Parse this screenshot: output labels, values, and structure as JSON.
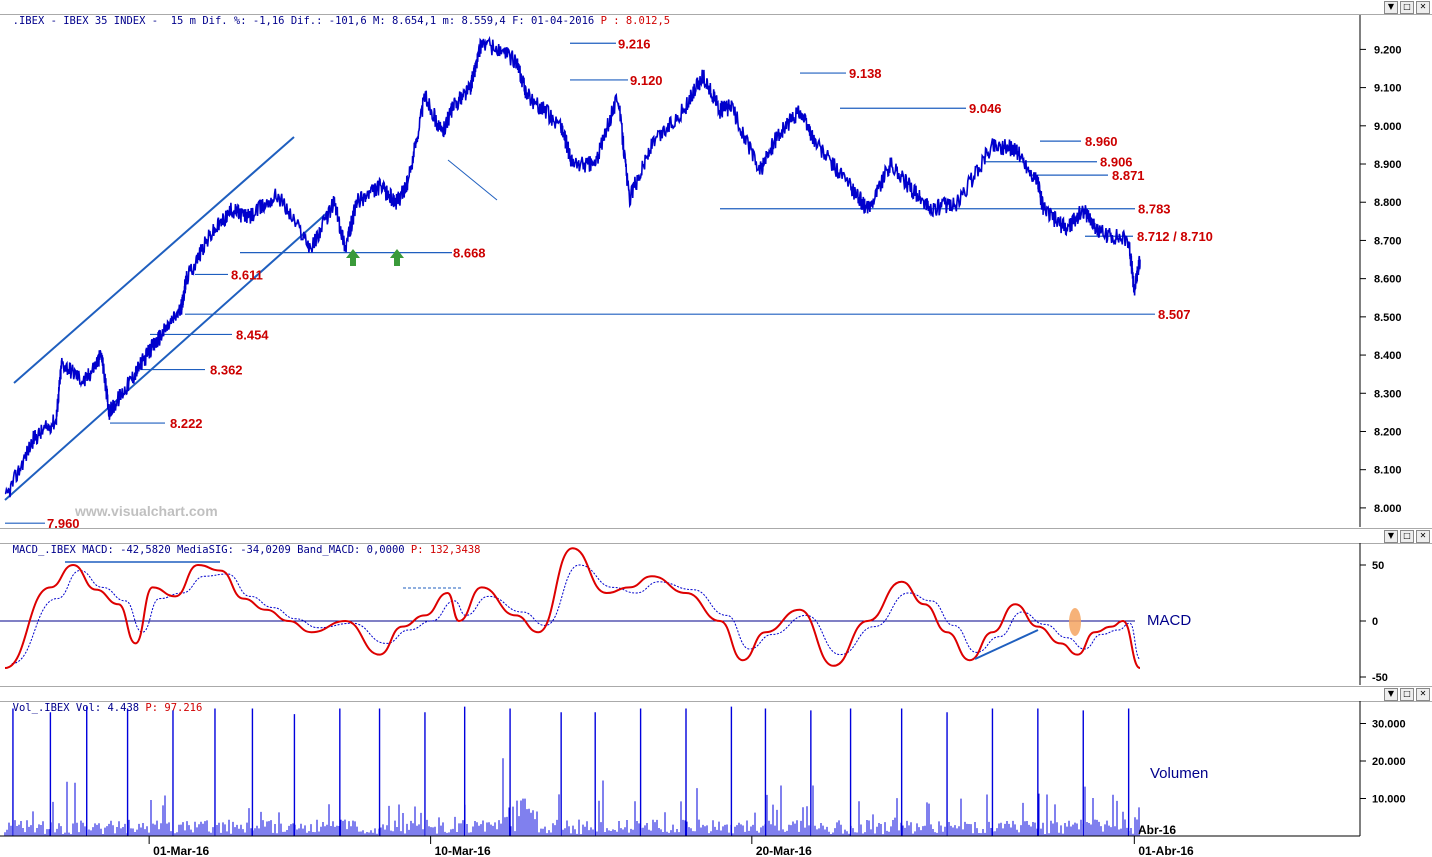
{
  "price_panel": {
    "header": {
      "symbol": ".IBEX - IBEX 35 INDEX -",
      "stats": "  15 m Dif. %: -1,16 Dif.: -101,6 M: 8.654,1 m: 8.559,4 F: 01-04-2016 ",
      "close_label": "P : 8.012,5"
    },
    "watermark": "www.visualchart.com"
  },
  "macd_panel": {
    "header": {
      "stats": "MACD_.IBEX MACD: -42,5820 MediaSIG: -34,0209 Band_MACD: 0,0000 ",
      "p_label": "P: 132,3438"
    },
    "label": "MACD"
  },
  "volume_panel": {
    "header": {
      "stats": "Vol_.IBEX Vol: 4.438 ",
      "p_label": "P: 97.216"
    },
    "label": "Volumen"
  },
  "window_buttons": [
    "▼",
    "□",
    "✕"
  ],
  "colors": {
    "price": "#0000cc",
    "level_line": "#1f5fbf",
    "level_text": "#cc0000",
    "macd": "#dd0000",
    "signal": "#0000cc",
    "volume": "#0000dd",
    "arrow": "#3a9a3a",
    "highlight": "#f4a460"
  },
  "chart_data": [
    {
      "type": "line",
      "title": "IBEX 35 INDEX 15 m",
      "x_ticks": [
        "01-Mar-16",
        "10-Mar-16",
        "20-Mar-16",
        "01-Abr-16"
      ],
      "x_tick_fracs": [
        0.127,
        0.375,
        0.658,
        0.995
      ],
      "ylim": [
        7.95,
        9.29
      ],
      "y_ticks": [
        "8.000",
        "8.100",
        "8.200",
        "8.300",
        "8.400",
        "8.500",
        "8.600",
        "8.700",
        "8.800",
        "8.900",
        "9.000",
        "9.100",
        "9.200"
      ],
      "y_tick_values": [
        8.0,
        8.1,
        8.2,
        8.3,
        8.4,
        8.5,
        8.6,
        8.7,
        8.8,
        8.9,
        9.0,
        9.1,
        9.2
      ],
      "series": [
        {
          "x": [
            0.0,
            0.025,
            0.045,
            0.05,
            0.07,
            0.085,
            0.092,
            0.11,
            0.125,
            0.137,
            0.155,
            0.16,
            0.18,
            0.2,
            0.215,
            0.24,
            0.27,
            0.29,
            0.3,
            0.31,
            0.33,
            0.345,
            0.355,
            0.37,
            0.385,
            0.395,
            0.41,
            0.42,
            0.45,
            0.46,
            0.49,
            0.5,
            0.52,
            0.54,
            0.55,
            0.57,
            0.6,
            0.615,
            0.63,
            0.64,
            0.665,
            0.68,
            0.7,
            0.715,
            0.745,
            0.76,
            0.78,
            0.8,
            0.815,
            0.84,
            0.87,
            0.89,
            0.91,
            0.915,
            0.935,
            0.95,
            0.965,
            0.99,
            0.995,
            1.0
          ],
          "values": [
            8.02,
            8.18,
            8.23,
            8.38,
            8.33,
            8.4,
            8.25,
            8.33,
            8.4,
            8.45,
            8.52,
            8.6,
            8.71,
            8.78,
            8.76,
            8.82,
            8.68,
            8.8,
            8.68,
            8.8,
            8.84,
            8.8,
            8.85,
            9.08,
            8.98,
            9.05,
            9.1,
            9.22,
            9.17,
            9.08,
            9.0,
            8.9,
            8.9,
            9.08,
            8.81,
            8.95,
            9.05,
            9.13,
            9.04,
            9.05,
            8.88,
            8.97,
            9.04,
            8.95,
            8.84,
            8.78,
            8.9,
            8.83,
            8.78,
            8.8,
            8.95,
            8.94,
            8.85,
            8.78,
            8.73,
            8.78,
            8.72,
            8.7,
            8.57,
            8.65
          ]
        }
      ],
      "levels": [
        {
          "label": "7.960",
          "value": 7.96
        },
        {
          "label": "8.222",
          "value": 8.222
        },
        {
          "label": "8.362",
          "value": 8.362
        },
        {
          "label": "8.454",
          "value": 8.454
        },
        {
          "label": "8.611",
          "value": 8.611
        },
        {
          "label": "8.668",
          "value": 8.668
        },
        {
          "label": "8.507",
          "value": 8.507
        },
        {
          "label": "9.216",
          "value": 9.216
        },
        {
          "label": "9.120",
          "value": 9.12
        },
        {
          "label": "9.138",
          "value": 9.138
        },
        {
          "label": "9.046",
          "value": 9.046
        },
        {
          "label": "8.960",
          "value": 8.96
        },
        {
          "label": "8.906",
          "value": 8.906
        },
        {
          "label": "8.871",
          "value": 8.871
        },
        {
          "label": "8.783",
          "value": 8.783
        },
        {
          "label": "8.712 / 8.710",
          "value": 8.711
        }
      ]
    },
    {
      "type": "line",
      "title": "MACD",
      "ylim": [
        -55,
        70
      ],
      "y_ticks": [
        "50",
        "0",
        "-50"
      ],
      "y_tick_values": [
        50,
        0,
        -50
      ],
      "x": [
        0.0,
        0.04,
        0.06,
        0.08,
        0.1,
        0.115,
        0.13,
        0.15,
        0.17,
        0.19,
        0.21,
        0.23,
        0.25,
        0.27,
        0.3,
        0.33,
        0.35,
        0.37,
        0.39,
        0.4,
        0.42,
        0.45,
        0.47,
        0.5,
        0.53,
        0.55,
        0.57,
        0.6,
        0.63,
        0.65,
        0.67,
        0.7,
        0.73,
        0.76,
        0.79,
        0.81,
        0.83,
        0.85,
        0.87,
        0.89,
        0.91,
        0.93,
        0.945,
        0.96,
        0.975,
        0.985,
        1.0
      ],
      "series": [
        {
          "values": [
            -42,
            30,
            50,
            28,
            15,
            -20,
            30,
            22,
            50,
            45,
            20,
            10,
            0,
            -10,
            0,
            -30,
            -5,
            5,
            25,
            0,
            30,
            5,
            -10,
            65,
            25,
            30,
            40,
            25,
            0,
            -35,
            -10,
            10,
            -40,
            0,
            35,
            15,
            -10,
            -35,
            -10,
            15,
            -5,
            -20,
            -30,
            -10,
            -5,
            0,
            -42
          ]
        },
        {
          "values": [
            -38,
            20,
            45,
            30,
            18,
            -10,
            20,
            25,
            40,
            42,
            22,
            12,
            2,
            -6,
            -2,
            -20,
            -8,
            0,
            18,
            5,
            22,
            8,
            -4,
            50,
            30,
            25,
            35,
            28,
            5,
            -25,
            -12,
            5,
            -30,
            -5,
            25,
            18,
            -4,
            -28,
            -14,
            8,
            -3,
            -15,
            -25,
            -12,
            -8,
            -2,
            -34
          ]
        }
      ]
    },
    {
      "type": "bar",
      "title": "Volumen",
      "ylim": [
        0,
        36000
      ],
      "y_ticks": [
        "10.000",
        "20.000",
        "30.000"
      ],
      "y_tick_values": [
        10000,
        20000,
        30000
      ],
      "x_ticks": [
        "01-Mar-16",
        "10-Mar-16",
        "20-Mar-16",
        "01-Abr-16"
      ],
      "spike_x": [
        0.007,
        0.04,
        0.072,
        0.108,
        0.148,
        0.185,
        0.218,
        0.255,
        0.295,
        0.33,
        0.37,
        0.405,
        0.445,
        0.49,
        0.52,
        0.56,
        0.6,
        0.64,
        0.67,
        0.71,
        0.745,
        0.79,
        0.83,
        0.87,
        0.91,
        0.95,
        0.99
      ],
      "spike_values": [
        34000,
        33000,
        34500,
        34000,
        33500,
        34000,
        34000,
        32500,
        34000,
        34000,
        33000,
        34500,
        34000,
        33000,
        33000,
        34000,
        34000,
        34500,
        34000,
        33500,
        34000,
        34000,
        33000,
        34000,
        34000,
        33500,
        34000
      ],
      "baseline_range": [
        500,
        7000
      ]
    }
  ],
  "annotation_labels": {
    "date_end_right": "Abr-16"
  }
}
